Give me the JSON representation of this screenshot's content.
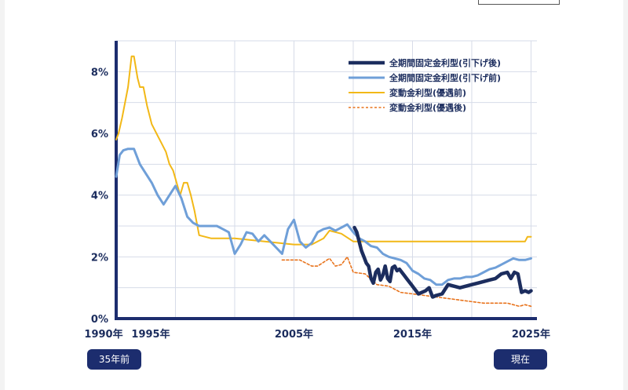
{
  "chart_data": {
    "type": "line",
    "ylim": [
      0,
      9
    ],
    "xlim": [
      1990,
      2025.5
    ],
    "yticks": [
      "0%",
      "2%",
      "4%",
      "6%",
      "8%"
    ],
    "ytick_values": [
      0,
      2,
      4,
      6,
      8
    ],
    "xticks": [
      "1990年",
      "1995年",
      "2005年",
      "2015年",
      "2025年"
    ],
    "xtick_values": [
      1990,
      1995,
      2005,
      2015,
      2025
    ],
    "grid": true,
    "legend_position": "top-right",
    "series": [
      {
        "name": "全期間固定金利型(引下げ後)",
        "color": "#1c2d5e",
        "style": "solid-thick",
        "x": [
          2010.1,
          2010.3,
          2010.5,
          2010.7,
          2010.9,
          2011.1,
          2011.3,
          2011.5,
          2011.7,
          2011.9,
          2012.1,
          2012.3,
          2012.5,
          2012.7,
          2012.9,
          2013.1,
          2013.3,
          2013.5,
          2013.7,
          2013.9,
          2014.1,
          2014.3,
          2014.5,
          2014.7,
          2014.9,
          2015.1,
          2015.3,
          2015.5,
          2015.8,
          2016.1,
          2016.4,
          2016.7,
          2017.0,
          2017.5,
          2018.0,
          2018.5,
          2019.0,
          2019.5,
          2020.0,
          2020.5,
          2021.0,
          2021.5,
          2022.0,
          2022.5,
          2023.0,
          2023.3,
          2023.6,
          2023.9,
          2024.2,
          2024.5,
          2024.8,
          2025.0
        ],
        "y": [
          2.95,
          2.8,
          2.5,
          2.2,
          2.0,
          1.8,
          1.7,
          1.3,
          1.15,
          1.5,
          1.6,
          1.25,
          1.4,
          1.7,
          1.3,
          1.2,
          1.65,
          1.7,
          1.55,
          1.6,
          1.5,
          1.4,
          1.3,
          1.2,
          1.1,
          1.0,
          0.9,
          0.8,
          0.85,
          0.9,
          1.0,
          0.7,
          0.75,
          0.8,
          1.1,
          1.05,
          1.0,
          1.05,
          1.1,
          1.15,
          1.2,
          1.25,
          1.3,
          1.45,
          1.5,
          1.3,
          1.5,
          1.45,
          0.85,
          0.9,
          0.85,
          0.9
        ]
      },
      {
        "name": "全期間固定金利型(引下げ前)",
        "color": "#6f9fd8",
        "style": "solid",
        "x": [
          1990.0,
          1990.3,
          1990.6,
          1991.0,
          1991.5,
          1992.0,
          1992.5,
          1993.0,
          1993.5,
          1994.0,
          1994.5,
          1995.0,
          1995.5,
          1996.0,
          1996.5,
          1997.0,
          1997.5,
          1998.0,
          1998.5,
          1999.0,
          1999.5,
          2000.0,
          2000.5,
          2001.0,
          2001.5,
          2002.0,
          2002.5,
          2003.0,
          2003.5,
          2004.0,
          2004.5,
          2005.0,
          2005.5,
          2006.0,
          2006.5,
          2007.0,
          2007.5,
          2008.0,
          2008.5,
          2009.0,
          2009.5,
          2010.0,
          2010.5,
          2011.0,
          2011.5,
          2012.0,
          2012.5,
          2013.0,
          2013.5,
          2014.0,
          2014.5,
          2015.0,
          2015.5,
          2016.0,
          2016.5,
          2017.0,
          2017.5,
          2018.0,
          2018.5,
          2019.0,
          2019.5,
          2020.0,
          2020.5,
          2021.0,
          2021.5,
          2022.0,
          2022.5,
          2023.0,
          2023.5,
          2024.0,
          2024.5,
          2025.0
        ],
        "y": [
          4.6,
          5.3,
          5.45,
          5.5,
          5.5,
          5.0,
          4.7,
          4.4,
          4.0,
          3.7,
          4.0,
          4.3,
          3.9,
          3.3,
          3.1,
          3.0,
          3.0,
          3.0,
          3.0,
          2.9,
          2.8,
          2.1,
          2.4,
          2.8,
          2.75,
          2.5,
          2.7,
          2.5,
          2.3,
          2.1,
          2.9,
          3.2,
          2.5,
          2.3,
          2.45,
          2.8,
          2.9,
          2.95,
          2.85,
          2.95,
          3.05,
          2.8,
          2.6,
          2.5,
          2.35,
          2.3,
          2.1,
          2.0,
          1.95,
          1.9,
          1.8,
          1.55,
          1.45,
          1.3,
          1.25,
          1.1,
          1.1,
          1.25,
          1.3,
          1.3,
          1.35,
          1.35,
          1.4,
          1.5,
          1.6,
          1.65,
          1.75,
          1.85,
          1.95,
          1.9,
          1.9,
          1.95
        ]
      },
      {
        "name": "変動金利型(優遇前)",
        "color": "#f2b817",
        "style": "solid",
        "x": [
          1990.0,
          1990.2,
          1990.5,
          1991.0,
          1991.3,
          1991.5,
          1991.8,
          1992.0,
          1992.3,
          1992.6,
          1993.0,
          1993.4,
          1993.8,
          1994.2,
          1994.5,
          1994.8,
          1995.1,
          1995.4,
          1995.7,
          1996.0,
          1996.3,
          1996.6,
          1997.0,
          1998.0,
          2000.0,
          2005.0,
          2006.5,
          2007.5,
          2008.0,
          2009.0,
          2010.0,
          2015.0,
          2020.0,
          2024.5,
          2024.7,
          2025.0
        ],
        "y": [
          5.8,
          6.0,
          6.5,
          7.5,
          8.5,
          8.5,
          7.8,
          7.5,
          7.5,
          6.9,
          6.3,
          6.0,
          5.7,
          5.4,
          5.0,
          4.8,
          4.4,
          4.0,
          4.4,
          4.4,
          4.0,
          3.5,
          2.7,
          2.6,
          2.6,
          2.4,
          2.4,
          2.6,
          2.85,
          2.75,
          2.5,
          2.5,
          2.5,
          2.5,
          2.65,
          2.65
        ]
      },
      {
        "name": "変動金利型(優遇後)",
        "color": "#e8731c",
        "style": "dashed",
        "x": [
          2004.0,
          2005.5,
          2006.5,
          2007.0,
          2008.0,
          2008.5,
          2009.0,
          2009.5,
          2010.0,
          2011.0,
          2012.0,
          2013.0,
          2014.0,
          2015.0,
          2016.0,
          2017.0,
          2018.0,
          2019.0,
          2020.0,
          2021.0,
          2022.0,
          2023.0,
          2024.0,
          2024.5,
          2025.0
        ],
        "y": [
          1.9,
          1.9,
          1.7,
          1.7,
          1.95,
          1.7,
          1.75,
          2.0,
          1.5,
          1.45,
          1.1,
          1.05,
          0.85,
          0.8,
          0.75,
          0.7,
          0.65,
          0.6,
          0.55,
          0.5,
          0.5,
          0.5,
          0.4,
          0.45,
          0.4
        ]
      }
    ]
  },
  "labels": {
    "start_badge": "35年前",
    "end_badge": "現在"
  }
}
